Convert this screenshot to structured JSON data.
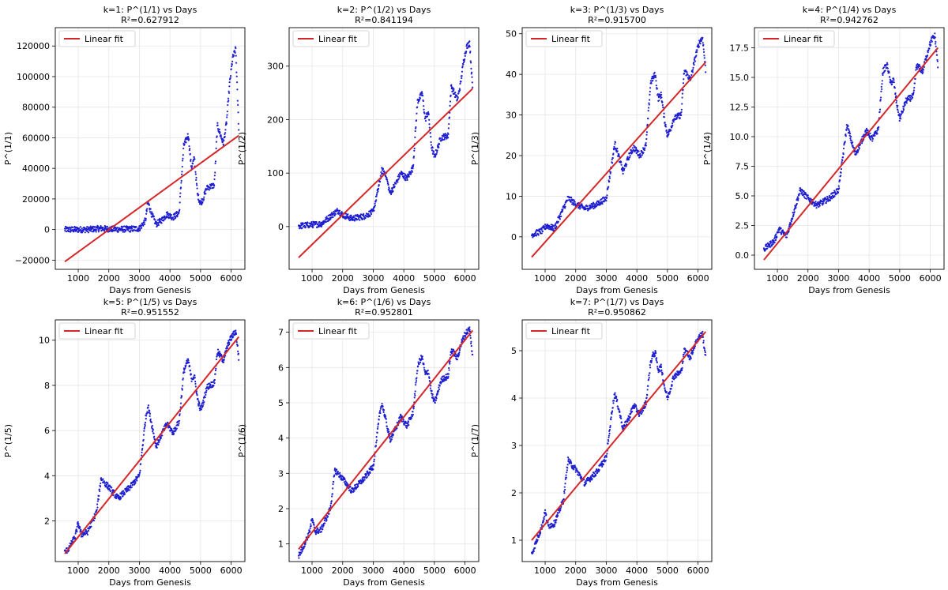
{
  "figure": {
    "colors": {
      "data": "#1f1fd1",
      "fit": "#d62728",
      "grid": "#e6e6e6",
      "axis": "#000000"
    },
    "common_xlabel": "Days from Genesis",
    "legend_label": "Linear fit"
  },
  "chart_data": [
    {
      "type": "scatter",
      "title_line1": "k=1: P^(1/1) vs Days",
      "title_line2": "R²=0.627912",
      "xlabel": "Days from Genesis",
      "ylabel": "P^(1/1)",
      "xlim": [
        250,
        6450
      ],
      "ylim": [
        -26000,
        132000
      ],
      "xticks": [
        1000,
        2000,
        3000,
        4000,
        5000,
        6000
      ],
      "yticks": [
        -20000,
        0,
        20000,
        40000,
        60000,
        80000,
        100000,
        120000
      ],
      "ytick_labels": [
        "−20000",
        "0",
        "20000",
        "40000",
        "60000",
        "80000",
        "100000",
        "120000"
      ],
      "fit": {
        "x": [
          560,
          6250
        ],
        "y": [
          -21000,
          61500
        ]
      },
      "legend": "top-left",
      "series_anchor_x": [
        560,
        900,
        1300,
        1750,
        2000,
        2300,
        2700,
        3000,
        3200,
        3280,
        3400,
        3550,
        3750,
        3900,
        4100,
        4300,
        4450,
        4520,
        4600,
        4700,
        4800,
        4900,
        5000,
        5100,
        5200,
        5300,
        5450,
        5550,
        5650,
        5750,
        5850,
        5950,
        6050,
        6150,
        6250
      ],
      "series_anchor_y": [
        0,
        0,
        0,
        700,
        400,
        200,
        350,
        700,
        6000,
        18000,
        10000,
        3500,
        6500,
        10000,
        8000,
        11000,
        55000,
        58000,
        62000,
        40000,
        47000,
        23000,
        17000,
        21000,
        27000,
        28000,
        29000,
        68000,
        62000,
        56000,
        70000,
        95000,
        112000,
        118000,
        65000
      ]
    },
    {
      "type": "scatter",
      "title_line1": "k=2: P^(1/2) vs Days",
      "title_line2": "R²=0.841194",
      "xlabel": "Days from Genesis",
      "ylabel": "P^(1/2)",
      "xlim": [
        250,
        6450
      ],
      "ylim": [
        -80,
        372
      ],
      "xticks": [
        1000,
        2000,
        3000,
        4000,
        5000,
        6000
      ],
      "yticks": [
        0,
        100,
        200,
        300
      ],
      "ytick_labels": [
        "0",
        "100",
        "200",
        "300"
      ],
      "fit": {
        "x": [
          560,
          6250
        ],
        "y": [
          -58,
          258
        ]
      },
      "legend": "top-left",
      "series_anchor_x": [
        560,
        900,
        1300,
        1750,
        1850,
        2000,
        2300,
        2700,
        3000,
        3200,
        3280,
        3400,
        3550,
        3750,
        3900,
        4100,
        4300,
        4450,
        4520,
        4600,
        4700,
        4800,
        4900,
        5000,
        5100,
        5200,
        5300,
        5450,
        5550,
        5650,
        5750,
        5850,
        5950,
        6050,
        6150,
        6250
      ],
      "series_anchor_y": [
        1,
        3,
        5,
        26,
        30,
        22,
        15,
        19,
        28,
        80,
        105,
        100,
        62,
        82,
        100,
        90,
        110,
        235,
        240,
        250,
        200,
        215,
        152,
        130,
        145,
        165,
        168,
        170,
        262,
        250,
        237,
        265,
        308,
        335,
        345,
        258
      ]
    },
    {
      "type": "scatter",
      "title_line1": "k=3: P^(1/3) vs Days",
      "title_line2": "R²=0.915700",
      "xlabel": "Days from Genesis",
      "ylabel": "P^(1/3)",
      "xlim": [
        250,
        6450
      ],
      "ylim": [
        -8,
        51.5
      ],
      "xticks": [
        1000,
        2000,
        3000,
        4000,
        5000,
        6000
      ],
      "yticks": [
        0,
        10,
        20,
        30,
        40,
        50
      ],
      "ytick_labels": [
        "0",
        "10",
        "20",
        "30",
        "40",
        "50"
      ],
      "fit": {
        "x": [
          560,
          6250
        ],
        "y": [
          -5,
          43
        ]
      },
      "legend": "top-left",
      "series_anchor_x": [
        560,
        900,
        1050,
        1300,
        1750,
        1850,
        2000,
        2300,
        2700,
        3000,
        3200,
        3280,
        3400,
        3550,
        3750,
        3900,
        4100,
        4300,
        4450,
        4520,
        4600,
        4700,
        4800,
        4900,
        5000,
        5100,
        5200,
        5300,
        5450,
        5550,
        5650,
        5750,
        5850,
        5950,
        6050,
        6150,
        6250
      ],
      "series_anchor_y": [
        0.5,
        1.5,
        2.8,
        2,
        9.5,
        9,
        8,
        7,
        8,
        9.5,
        19,
        23,
        20,
        16,
        20,
        22,
        20,
        22.5,
        38,
        39,
        40,
        34,
        35,
        29,
        25,
        26.5,
        29,
        29.5,
        30,
        41,
        40,
        38.5,
        42,
        45.5,
        48,
        49,
        41
      ]
    },
    {
      "type": "scatter",
      "title_line1": "k=4: P^(1/4) vs Days",
      "title_line2": "R²=0.942762",
      "xlabel": "Days from Genesis",
      "ylabel": "P^(1/4)",
      "xlim": [
        250,
        6450
      ],
      "ylim": [
        -1.2,
        19.2
      ],
      "xticks": [
        1000,
        2000,
        3000,
        4000,
        5000,
        6000
      ],
      "yticks": [
        0,
        2.5,
        5,
        7.5,
        10,
        12.5,
        15,
        17.5
      ],
      "ytick_labels": [
        "0.0",
        "2.5",
        "5.0",
        "7.5",
        "10.0",
        "12.5",
        "15.0",
        "17.5"
      ],
      "fit": {
        "x": [
          560,
          6250
        ],
        "y": [
          -0.4,
          17.5
        ]
      },
      "legend": "top-left",
      "series_anchor_x": [
        560,
        900,
        1050,
        1300,
        1750,
        1850,
        2000,
        2300,
        2700,
        3000,
        3200,
        3280,
        3400,
        3550,
        3750,
        3900,
        4100,
        4300,
        4450,
        4520,
        4600,
        4700,
        4800,
        4900,
        5000,
        5100,
        5200,
        5300,
        5450,
        5550,
        5650,
        5750,
        5850,
        5950,
        6050,
        6150,
        6250
      ],
      "series_anchor_y": [
        0.5,
        1.2,
        2.2,
        1.6,
        5.5,
        5.2,
        4.8,
        4.2,
        4.8,
        5.5,
        9.5,
        11,
        9.8,
        8.5,
        9.6,
        10.5,
        9.8,
        10.6,
        15.5,
        15.8,
        16,
        14.5,
        14.8,
        12.8,
        11.5,
        12.2,
        13,
        13.2,
        13.4,
        16,
        15.8,
        15.5,
        16.5,
        17.5,
        18.2,
        18.5,
        16
      ]
    },
    {
      "type": "scatter",
      "title_line1": "k=5: P^(1/5) vs Days",
      "title_line2": "R²=0.951552",
      "xlabel": "Days from Genesis",
      "ylabel": "P^(1/5)",
      "xlim": [
        250,
        6450
      ],
      "ylim": [
        0.2,
        10.9
      ],
      "xticks": [
        1000,
        2000,
        3000,
        4000,
        5000,
        6000
      ],
      "yticks": [
        2,
        4,
        6,
        8,
        10
      ],
      "ytick_labels": [
        "2",
        "4",
        "6",
        "8",
        "10"
      ],
      "fit": {
        "x": [
          560,
          6250
        ],
        "y": [
          0.55,
          10.15
        ]
      },
      "legend": "top-left",
      "series_anchor_x": [
        560,
        700,
        900,
        1000,
        1100,
        1300,
        1600,
        1750,
        1850,
        2000,
        2300,
        2700,
        3000,
        3200,
        3280,
        3400,
        3550,
        3750,
        3900,
        4100,
        4300,
        4450,
        4520,
        4600,
        4700,
        4800,
        4900,
        5000,
        5100,
        5200,
        5300,
        5450,
        5550,
        5650,
        5750,
        5850,
        5950,
        6050,
        6150,
        6250
      ],
      "series_anchor_y": [
        0.6,
        0.8,
        1.3,
        1.9,
        1.4,
        1.5,
        2.4,
        3.9,
        3.7,
        3.5,
        3.0,
        3.5,
        4.0,
        6.5,
        7.1,
        6.3,
        5.3,
        5.9,
        6.3,
        5.9,
        6.4,
        8.6,
        8.9,
        9.1,
        8.3,
        8.4,
        7.4,
        6.9,
        7.3,
        7.9,
        8.0,
        8.1,
        9.5,
        9.3,
        9.1,
        9.6,
        10.0,
        10.2,
        10.4,
        9.2
      ]
    },
    {
      "type": "scatter",
      "title_line1": "k=6: P^(1/6) vs Days",
      "title_line2": "R²=0.952801",
      "xlabel": "Days from Genesis",
      "ylabel": "P^(1/6)",
      "xlim": [
        250,
        6450
      ],
      "ylim": [
        0.5,
        7.35
      ],
      "xticks": [
        1000,
        2000,
        3000,
        4000,
        5000,
        6000
      ],
      "yticks": [
        1,
        2,
        3,
        4,
        5,
        6,
        7
      ],
      "ytick_labels": [
        "1",
        "2",
        "3",
        "4",
        "5",
        "6",
        "7"
      ],
      "fit": {
        "x": [
          560,
          6250
        ],
        "y": [
          0.85,
          7.05
        ]
      },
      "legend": "top-left",
      "series_anchor_x": [
        560,
        700,
        900,
        1000,
        1100,
        1300,
        1600,
        1750,
        1850,
        2000,
        2300,
        2700,
        3000,
        3200,
        3280,
        3400,
        3550,
        3750,
        3900,
        4100,
        4300,
        4450,
        4520,
        4600,
        4700,
        4800,
        4900,
        5000,
        5100,
        5200,
        5300,
        5450,
        5550,
        5650,
        5750,
        5850,
        5950,
        6050,
        6150,
        6250
      ],
      "series_anchor_y": [
        0.65,
        0.9,
        1.3,
        1.7,
        1.35,
        1.4,
        2.0,
        3.1,
        3.0,
        2.85,
        2.5,
        2.85,
        3.2,
        4.6,
        5.0,
        4.55,
        3.95,
        4.3,
        4.6,
        4.35,
        4.7,
        6.0,
        6.2,
        6.3,
        5.8,
        5.9,
        5.3,
        5.0,
        5.25,
        5.6,
        5.7,
        5.75,
        6.5,
        6.4,
        6.25,
        6.6,
        6.85,
        7.0,
        7.1,
        6.3
      ]
    },
    {
      "type": "scatter",
      "title_line1": "k=7: P^(1/7) vs Days",
      "title_line2": "R²=0.950862",
      "xlabel": "Days from Genesis",
      "ylabel": "P^(1/7)",
      "xlim": [
        250,
        6450
      ],
      "ylim": [
        0.55,
        5.65
      ],
      "xticks": [
        1000,
        2000,
        3000,
        4000,
        5000,
        6000
      ],
      "yticks": [
        1,
        2,
        3,
        4,
        5
      ],
      "ytick_labels": [
        "1",
        "2",
        "3",
        "4",
        "5"
      ],
      "fit": {
        "x": [
          560,
          6250
        ],
        "y": [
          1.0,
          5.4
        ]
      },
      "legend": "top-left",
      "series_anchor_x": [
        560,
        700,
        900,
        1000,
        1100,
        1300,
        1600,
        1750,
        1850,
        2000,
        2300,
        2700,
        3000,
        3200,
        3280,
        3400,
        3550,
        3750,
        3900,
        4100,
        4300,
        4450,
        4520,
        4600,
        4700,
        4800,
        4900,
        5000,
        5100,
        5200,
        5300,
        5450,
        5550,
        5650,
        5750,
        5850,
        5950,
        6050,
        6150,
        6250
      ],
      "series_anchor_y": [
        0.7,
        0.95,
        1.3,
        1.6,
        1.3,
        1.35,
        1.85,
        2.7,
        2.6,
        2.5,
        2.2,
        2.45,
        2.75,
        3.8,
        4.1,
        3.8,
        3.35,
        3.6,
        3.85,
        3.65,
        3.9,
        4.75,
        4.9,
        4.95,
        4.6,
        4.65,
        4.25,
        4.0,
        4.2,
        4.45,
        4.5,
        4.55,
        5.0,
        4.95,
        4.85,
        5.05,
        5.2,
        5.3,
        5.35,
        4.85
      ]
    }
  ]
}
